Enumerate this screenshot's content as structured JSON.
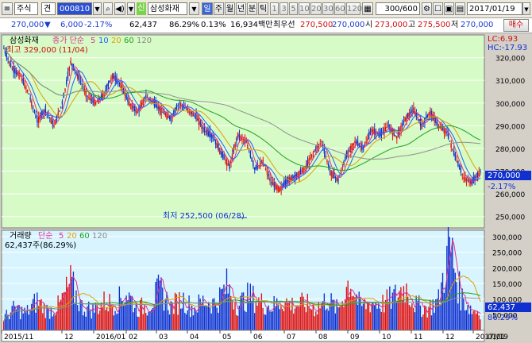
{
  "toolbar": {
    "market": "주식",
    "type": "견",
    "code": "000810",
    "credit_badge": "신",
    "name": "삼성화재",
    "periods": [
      "일",
      "주",
      "월",
      "년",
      "분",
      "틱"
    ],
    "active_period": "일",
    "minutes": [
      "1",
      "3",
      "5",
      "10",
      "20",
      "30",
      "60",
      "120"
    ],
    "count": "300/600",
    "date": "2017/01/19"
  },
  "quote": {
    "price": "270,000",
    "change": "6,000",
    "change_pct": "-2.17%",
    "volume": "62,437",
    "vol_ratio": "86.29%",
    "turnover": "0.13%",
    "amount": "16,934백만",
    "pref_label": "최우선",
    "bid1": "270,500",
    "ask1": "270,000",
    "open_label": "시",
    "open": "273,000",
    "high_label": "고",
    "high": "275,500",
    "low_label": "저",
    "low": "270,000",
    "order_button": "매수"
  },
  "price_panel": {
    "title": "삼성화재",
    "ma_label": "종가 단순",
    "ma_periods": [
      "5",
      "10",
      "20",
      "60",
      "120"
    ],
    "high_annotation": "최고 329,000 (11/04)",
    "low_annotation": "최저 252,500 (06/28)",
    "lc_label": "LC:6.93",
    "hc_label": "HC:-17.93",
    "current_price_tag": "270,000",
    "current_change_tag": "-2.17%"
  },
  "volume_panel": {
    "title": "거래량",
    "ma_label": "단순",
    "ma_periods": [
      "5",
      "20",
      "60",
      "120"
    ],
    "value_label": "62,437주(86.29%)",
    "current_tag": "62,437",
    "ratio_tag": "86.29%"
  },
  "colors": {
    "ma5": "#e03090",
    "ma10": "#2060ff",
    "ma20": "#e0a000",
    "ma60": "#20a020",
    "ma120": "#909090",
    "up": "#e01010",
    "down": "#1030d0",
    "price_bg": "#d6fbc6",
    "volume_bg": "#d8f5ff"
  },
  "chart_data": {
    "type": "candlestick",
    "x_ticks": [
      "2015/11",
      "12",
      "2016/01",
      "02",
      "03",
      "04",
      "05",
      "06",
      "07",
      "08",
      "09",
      "10",
      "11",
      "12",
      "2017/01",
      "01/19"
    ],
    "price_axis": [
      250000,
      260000,
      270000,
      280000,
      290000,
      300000,
      310000,
      320000
    ],
    "volume_axis": [
      50000,
      100000,
      150000,
      200000,
      250000,
      300000
    ],
    "price_series": [
      [
        0,
        324000
      ],
      [
        6,
        315000
      ],
      [
        12,
        312000
      ],
      [
        18,
        304000
      ],
      [
        24,
        292000
      ],
      [
        30,
        297000
      ],
      [
        36,
        290000
      ],
      [
        42,
        300000
      ],
      [
        48,
        318000
      ],
      [
        54,
        311000
      ],
      [
        60,
        303000
      ],
      [
        66,
        300000
      ],
      [
        72,
        304000
      ],
      [
        78,
        312000
      ],
      [
        84,
        308000
      ],
      [
        90,
        300000
      ],
      [
        96,
        296000
      ],
      [
        102,
        303000
      ],
      [
        108,
        300000
      ],
      [
        114,
        296000
      ],
      [
        120,
        293000
      ],
      [
        126,
        300000
      ],
      [
        132,
        297000
      ],
      [
        138,
        294000
      ],
      [
        144,
        288000
      ],
      [
        150,
        285000
      ],
      [
        156,
        278000
      ],
      [
        162,
        272000
      ],
      [
        168,
        286000
      ],
      [
        174,
        283000
      ],
      [
        180,
        271000
      ],
      [
        186,
        274000
      ],
      [
        192,
        265000
      ],
      [
        198,
        262000
      ],
      [
        204,
        266000
      ],
      [
        210,
        268000
      ],
      [
        216,
        271000
      ],
      [
        222,
        278000
      ],
      [
        228,
        283000
      ],
      [
        234,
        270000
      ],
      [
        240,
        266000
      ],
      [
        246,
        277000
      ],
      [
        252,
        283000
      ],
      [
        258,
        280000
      ],
      [
        264,
        288000
      ],
      [
        270,
        286000
      ],
      [
        276,
        290000
      ],
      [
        282,
        285000
      ],
      [
        288,
        293000
      ],
      [
        294,
        297000
      ],
      [
        300,
        290000
      ],
      [
        306,
        296000
      ],
      [
        312,
        290000
      ],
      [
        318,
        287000
      ],
      [
        324,
        276000
      ],
      [
        330,
        267000
      ],
      [
        336,
        265000
      ],
      [
        342,
        270000
      ]
    ],
    "volume_series": [
      [
        0,
        40000
      ],
      [
        8,
        70000
      ],
      [
        16,
        55000
      ],
      [
        24,
        95000
      ],
      [
        32,
        60000
      ],
      [
        40,
        80000
      ],
      [
        48,
        150000
      ],
      [
        56,
        75000
      ],
      [
        64,
        65000
      ],
      [
        72,
        90000
      ],
      [
        80,
        85000
      ],
      [
        88,
        120000
      ],
      [
        96,
        70000
      ],
      [
        104,
        80000
      ],
      [
        112,
        130000
      ],
      [
        120,
        75000
      ],
      [
        128,
        100000
      ],
      [
        136,
        70000
      ],
      [
        144,
        95000
      ],
      [
        152,
        85000
      ],
      [
        160,
        140000
      ],
      [
        168,
        80000
      ],
      [
        176,
        110000
      ],
      [
        184,
        90000
      ],
      [
        192,
        75000
      ],
      [
        200,
        95000
      ],
      [
        208,
        80000
      ],
      [
        216,
        85000
      ],
      [
        224,
        70000
      ],
      [
        232,
        100000
      ],
      [
        240,
        65000
      ],
      [
        248,
        160000
      ],
      [
        256,
        75000
      ],
      [
        264,
        90000
      ],
      [
        272,
        85000
      ],
      [
        280,
        105000
      ],
      [
        288,
        140000
      ],
      [
        296,
        80000
      ],
      [
        304,
        70000
      ],
      [
        312,
        95000
      ],
      [
        320,
        275000
      ],
      [
        328,
        110000
      ],
      [
        336,
        65000
      ],
      [
        342,
        62437
      ]
    ]
  }
}
